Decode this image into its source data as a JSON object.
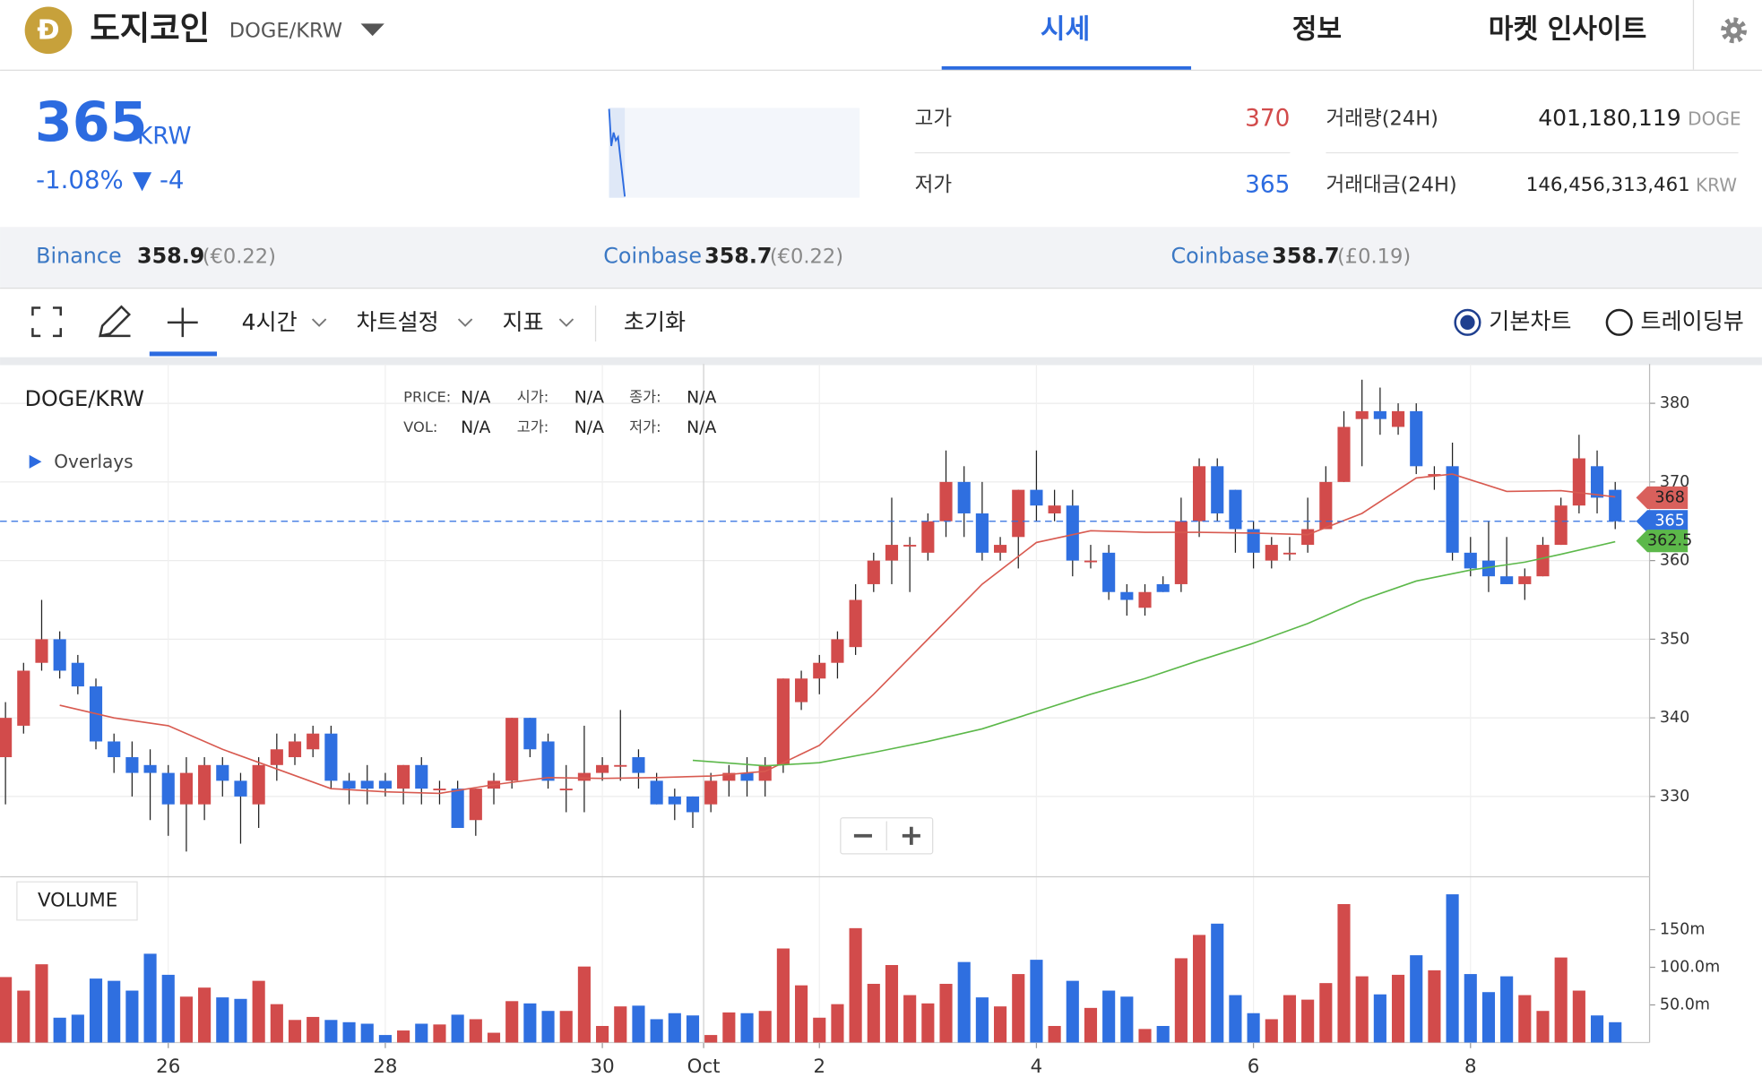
{
  "header": {
    "logo": "Đ",
    "name": "도지코인",
    "pair": "DOGE/KRW",
    "tabs": [
      "시세",
      "정보",
      "마켓 인사이트"
    ]
  },
  "ticker": {
    "price": "365",
    "unit": "KRW",
    "change_pct": "-1.08%",
    "change": "▼ -4"
  },
  "stats": [
    {
      "label": "고가",
      "value": "370"
    },
    {
      "label": "저가",
      "value": "365"
    },
    {
      "label": "거래량(24H)",
      "value": "401,180,119",
      "unit": "DOGE"
    },
    {
      "label": "거래대금(24H)",
      "value": "146,456,313,461",
      "unit": "KRW"
    }
  ],
  "exchanges": [
    {
      "name": "Binance",
      "price": "358.9",
      "fx": "(€0.22)"
    },
    {
      "name": "Coinbase",
      "price": "358.7",
      "fx": "(€0.22)"
    },
    {
      "name": "Coinbase",
      "price": "358.7",
      "fx": "(£0.19)"
    }
  ],
  "toolbar": {
    "interval": "4시간",
    "settings": "차트설정",
    "indicators": "지표",
    "reset": "초기화",
    "views": [
      "기본차트",
      "트레이딩뷰"
    ]
  },
  "chart_data": {
    "type": "candlestick",
    "title": "DOGE/KRW",
    "overlays_label": "Overlays",
    "volume_label": "VOLUME",
    "info": [
      {
        "label": "PRICE:",
        "value": "N/A"
      },
      {
        "label": "시가:",
        "value": "N/A"
      },
      {
        "label": "종가:",
        "value": "N/A"
      },
      {
        "label": "VOL:",
        "value": "N/A"
      },
      {
        "label": "고가:",
        "value": "N/A"
      },
      {
        "label": "저가:",
        "value": "N/A"
      }
    ],
    "up_color": "#d24b4b",
    "down_color": "#2f6fe0",
    "open": [
      335,
      339,
      347,
      350,
      347,
      344,
      337,
      335,
      334,
      333,
      329,
      329,
      334,
      332,
      329,
      334,
      335,
      336,
      338,
      332,
      332,
      332,
      331,
      334,
      331,
      331,
      327,
      331,
      332,
      340,
      337,
      331,
      332,
      333,
      334,
      335,
      332,
      330,
      330,
      329,
      332,
      333,
      332,
      334,
      342,
      345,
      347,
      349,
      357,
      360,
      362,
      361,
      365,
      370,
      366,
      361,
      363,
      369,
      366,
      367,
      360,
      361,
      356,
      354,
      357,
      357,
      365,
      372,
      369,
      364,
      360,
      361,
      362,
      364,
      370,
      378,
      379,
      377,
      379,
      371,
      372,
      361,
      360,
      358,
      357,
      358,
      362,
      367,
      372,
      369
    ],
    "high": [
      342,
      347,
      355,
      351,
      348,
      345,
      338,
      337,
      336,
      334,
      335,
      335,
      335,
      333,
      335,
      338,
      338,
      339,
      339,
      333,
      334,
      333,
      334,
      335,
      332,
      332,
      331,
      333,
      340,
      340,
      338,
      334,
      339,
      335,
      341,
      336,
      333,
      331,
      330,
      333,
      334,
      335,
      335,
      345,
      346,
      348,
      351,
      357,
      361,
      368,
      363,
      366,
      374,
      372,
      370,
      363,
      369,
      374,
      369,
      369,
      362,
      362,
      357,
      357,
      358,
      368,
      373,
      373,
      369,
      365,
      363,
      363,
      368,
      372,
      379,
      383,
      382,
      380,
      380,
      372,
      375,
      363,
      365,
      363,
      359,
      363,
      368,
      376,
      374,
      370
    ],
    "low": [
      329,
      338,
      346,
      345,
      343,
      336,
      333,
      330,
      327,
      325,
      323,
      327,
      330,
      324,
      326,
      332,
      334,
      335,
      331,
      329,
      329,
      330,
      329,
      329,
      329,
      326,
      325,
      329,
      331,
      335,
      331,
      328,
      328,
      332,
      332,
      331,
      329,
      327,
      326,
      328,
      330,
      330,
      330,
      333,
      341,
      343,
      345,
      348,
      356,
      357,
      356,
      360,
      363,
      363,
      360,
      360,
      359,
      365,
      365,
      358,
      359,
      355,
      353,
      353,
      356,
      356,
      363,
      365,
      361,
      359,
      359,
      360,
      361,
      364,
      370,
      372,
      376,
      376,
      371,
      369,
      360,
      358,
      356,
      357,
      355,
      358,
      362,
      366,
      366,
      364
    ],
    "close": [
      340,
      346,
      350,
      346,
      344,
      337,
      335,
      333,
      333,
      329,
      333,
      334,
      332,
      330,
      334,
      336,
      337,
      338,
      332,
      331,
      331,
      331,
      334,
      331,
      331,
      326,
      331,
      332,
      340,
      336,
      332,
      331,
      333,
      334,
      334,
      333,
      329,
      329,
      328,
      332,
      333,
      332,
      334,
      345,
      345,
      347,
      350,
      355,
      360,
      362,
      362,
      365,
      370,
      366,
      361,
      362,
      369,
      367,
      367,
      360,
      360,
      356,
      355,
      356,
      356,
      365,
      372,
      366,
      364,
      361,
      362,
      361,
      364,
      370,
      377,
      379,
      378,
      379,
      372,
      371,
      361,
      359,
      358,
      357,
      358,
      362,
      367,
      373,
      368,
      365
    ],
    "volume": [
      87,
      69,
      104,
      33,
      37,
      85,
      82,
      69,
      118,
      90,
      61,
      73,
      60,
      58,
      82,
      51,
      30,
      34,
      30,
      27,
      25,
      10,
      16,
      25,
      24,
      37,
      31,
      13,
      55,
      52,
      42,
      42,
      101,
      22,
      48,
      49,
      31,
      39,
      36,
      10,
      40,
      39,
      42,
      125,
      76,
      33,
      51,
      152,
      78,
      103,
      63,
      52,
      78,
      107,
      60,
      48,
      91,
      110,
      22,
      82,
      46,
      69,
      61,
      18,
      22,
      112,
      143,
      158,
      63,
      39,
      31,
      63,
      57,
      79,
      184,
      88,
      64,
      90,
      116,
      96,
      197,
      91,
      67,
      88,
      63,
      42,
      113,
      69,
      36,
      27
    ],
    "xlim": [
      -0.3,
      90.9
    ],
    "xticks": [
      {
        "value": 9,
        "label": "26"
      },
      {
        "value": 21,
        "label": "28"
      },
      {
        "value": 33,
        "label": "30"
      },
      {
        "value": 38.6,
        "label": "Oct"
      },
      {
        "value": 45,
        "label": "2"
      },
      {
        "value": 57,
        "label": "4"
      },
      {
        "value": 69,
        "label": "6"
      },
      {
        "value": 81,
        "label": "8"
      }
    ],
    "ylim": [
      320,
      385
    ],
    "yticks": [
      330,
      340,
      350,
      360,
      370,
      380
    ],
    "vol_ylim": [
      0,
      218
    ],
    "vol_yticks": [
      {
        "value": 50,
        "label": "50.0m"
      },
      {
        "value": 100,
        "label": "100.0m"
      },
      {
        "value": 150,
        "label": "150m"
      }
    ],
    "overlays": [
      {
        "color": "#d85a50",
        "x": [
          3,
          6,
          9,
          12,
          15,
          18,
          21,
          24,
          27,
          30,
          33,
          36,
          39,
          42,
          45,
          48,
          51,
          54,
          57,
          60,
          63,
          66,
          69,
          72,
          75,
          78,
          80,
          83,
          86,
          89
        ],
        "values": [
          341.6,
          340,
          339,
          336,
          333.5,
          331,
          330.6,
          330.4,
          331.5,
          332.4,
          332.3,
          332.4,
          332.6,
          333.2,
          336.5,
          343,
          350,
          357,
          362.3,
          363.8,
          363.6,
          363.6,
          363.5,
          363.3,
          366,
          370.5,
          371,
          368.8,
          368.9,
          368.1
        ]
      },
      {
        "color": "#5cb84a",
        "x": [
          38,
          42,
          45,
          48,
          51,
          54,
          57,
          60,
          63,
          66,
          69,
          72,
          75,
          78,
          81,
          84,
          86,
          89
        ],
        "values": [
          334.6,
          333.9,
          334.3,
          335.6,
          337,
          338.6,
          340.8,
          343,
          345,
          347.3,
          349.5,
          352,
          355,
          357.4,
          358.8,
          359.8,
          360.8,
          362.4
        ]
      }
    ],
    "price_badges": [
      {
        "value": 368,
        "color": "#d9605c",
        "text_color": "#222"
      },
      {
        "value": 365,
        "color": "#2f6fe0",
        "text_color": "#fff"
      },
      {
        "value": 362.5,
        "color": "#5cb84a",
        "text_color": "#222"
      }
    ]
  }
}
